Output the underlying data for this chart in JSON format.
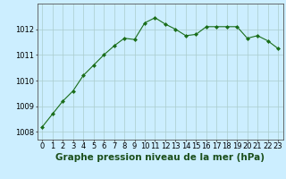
{
  "x": [
    0,
    1,
    2,
    3,
    4,
    5,
    6,
    7,
    8,
    9,
    10,
    11,
    12,
    13,
    14,
    15,
    16,
    17,
    18,
    19,
    20,
    21,
    22,
    23
  ],
  "y": [
    1008.2,
    1008.7,
    1009.2,
    1009.6,
    1010.2,
    1010.6,
    1011.0,
    1011.35,
    1011.65,
    1011.6,
    1012.25,
    1012.45,
    1012.2,
    1012.0,
    1011.75,
    1011.8,
    1012.1,
    1012.1,
    1012.1,
    1012.1,
    1011.65,
    1011.75,
    1011.55,
    1011.25
  ],
  "line_color": "#1a6e1a",
  "marker": "D",
  "marker_size": 2.0,
  "bg_color": "#cceeff",
  "grid_color": "#aacccc",
  "ylabel_ticks": [
    1008,
    1009,
    1010,
    1011,
    1012
  ],
  "xlabel": "Graphe pression niveau de la mer (hPa)",
  "xlabel_fontsize": 7.5,
  "tick_fontsize": 6,
  "ylim": [
    1007.7,
    1013.0
  ],
  "xlim": [
    -0.5,
    23.5
  ]
}
